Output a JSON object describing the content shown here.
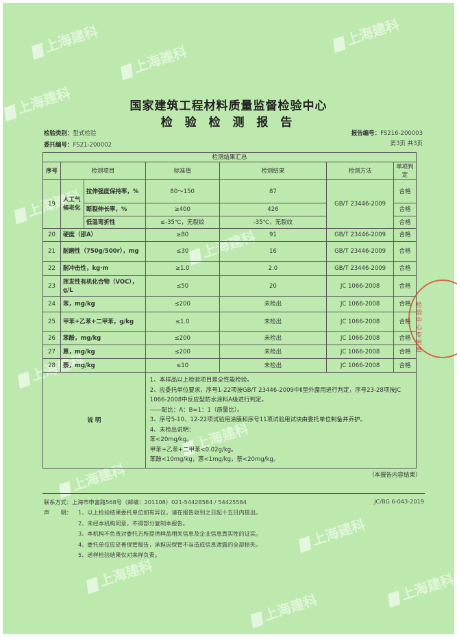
{
  "header": {
    "title": "国家建筑工程材料质量监督检验中心",
    "subtitle": "检 验 检 测 报 告",
    "test_type_label": "检验类别：",
    "test_type": "型式检验",
    "commission_label": "委托编号：",
    "commission_no": "FS21-200002",
    "report_label": "报告编号：",
    "report_no": "FS216-200003",
    "page": "第3页 共3页"
  },
  "table": {
    "caption": "检测结果汇总",
    "headers": [
      "序号",
      "检测项目",
      "标准值",
      "检测结果",
      "检测方法",
      "单项判定"
    ],
    "row19": {
      "no": "19",
      "group": "人工气候老化",
      "method": "GB/T 23446-2009",
      "subs": [
        {
          "item": "拉伸强度保持率，%",
          "standard": "80～150",
          "result": "87",
          "verdict": "合格"
        },
        {
          "item": "断裂伸长率，%",
          "standard": "≥400",
          "result": "426",
          "verdict": "合格"
        },
        {
          "item": "低温弯折性",
          "standard": "≤-35℃，无裂纹",
          "result": "-35℃，无裂纹",
          "verdict": "合格"
        }
      ]
    },
    "rows": [
      {
        "no": "20",
        "item": "硬度（邵A）",
        "standard": "≥80",
        "result": "91",
        "method": "GB/T 23446-2009",
        "verdict": "合格"
      },
      {
        "no": "21",
        "item": "耐磨性（750g/500r），mg",
        "standard": "≤30",
        "result": "16",
        "method": "GB/T 23446-2009",
        "verdict": "合格"
      },
      {
        "no": "22",
        "item": "耐冲击性，kg·m",
        "standard": "≥1.0",
        "result": "2.0",
        "method": "GB/T 23446-2009",
        "verdict": "合格"
      },
      {
        "no": "23",
        "item": "挥发性有机化合物（VOC），g/L",
        "standard": "≤50",
        "result": "20",
        "method": "JC 1066-2008",
        "verdict": "合格"
      },
      {
        "no": "24",
        "item": "苯，mg/kg",
        "standard": "≤200",
        "result": "未检出",
        "method": "JC 1066-2008",
        "verdict": "合格"
      },
      {
        "no": "25",
        "item": "甲苯+乙苯+二甲苯，g/kg",
        "standard": "≤1.0",
        "result": "未检出",
        "method": "JC 1066-2008",
        "verdict": "合格"
      },
      {
        "no": "26",
        "item": "苯酚，mg/kg",
        "standard": "≤200",
        "result": "未检出",
        "method": "JC 1066-2008",
        "verdict": "合格"
      },
      {
        "no": "27",
        "item": "蒽，mg/kg",
        "standard": "≤200",
        "result": "未检出",
        "method": "JC 1066-2008",
        "verdict": "合格"
      },
      {
        "no": "28",
        "item": "萘，mg/kg",
        "standard": "≤10",
        "result": "未检出",
        "method": "JC 1066-2008",
        "verdict": "合格"
      }
    ],
    "notes_label": "说 明",
    "notes": [
      "1、本样品以上检验项目是全性能检验。",
      "2、应委托单位要求，序号1-22项按GB/T 23446-2009中Ⅱ型外露用进行判定，序号23-28项按JC 1066-2008中反应型防水涂料A级进行判定。",
      "——配比：A：B=1：1（质量比）。",
      "3、序号5-10、12-22项试验用涂膜和序号11项试验用试块由委托单位制备并养护。",
      "4、未检出说明：",
      "苯<20mg/kg。",
      "甲苯+乙苯+二甲苯<0.02g/kg。",
      "苯酚<10mg/kg，蒽<1mg/kg，萘<20mg/kg。"
    ]
  },
  "end_note": "（本报告内容结束）",
  "footer": {
    "contact": "联系方式：上海市申富路568号（邮编：201108）021-54428584 / 54425584",
    "form_no": "JC/BG 6-043-2019",
    "declaration_label": "声　　明：",
    "declarations": [
      "1、以上检验结果委托单位如有异议，请在报告收到之日起十五日内提出。",
      "2、未经本机构同意，不得部分复制本报告。",
      "3、本机构不负责对委托方所提供样品相关信息及企业信息真实性的证实。",
      "4、委托单位应妥善保管报告，承担因保管不当造成信息泄露的全部损失。",
      "5、送样检验结果仅对来样负责。"
    ]
  },
  "watermark": "上海建科",
  "stamp_text": "检验中心专用章",
  "colors": {
    "paper": "#bde9ae",
    "stamp": "#d23c28"
  }
}
